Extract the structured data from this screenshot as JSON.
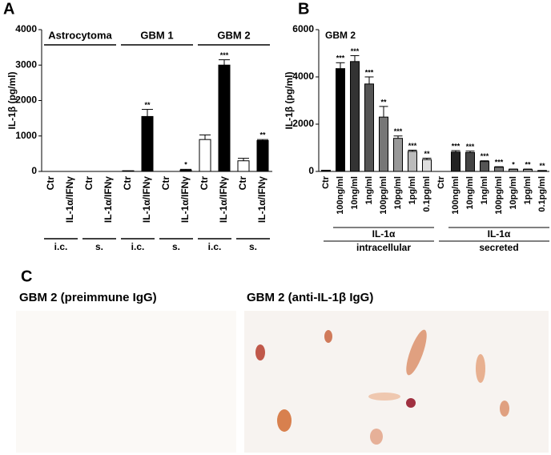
{
  "panel_labels": [
    "A",
    "B",
    "C"
  ],
  "chart_data": [
    {
      "type": "bar",
      "ylabel": "IL-1β (pg/ml)",
      "categories": [
        "Ctr",
        "IL-1α/IFNγ",
        "Ctr",
        "IL-1α/IFNγ",
        "Ctr",
        "IL-1α/IFNγ",
        "Ctr",
        "IL-1α/IFNγ",
        "Ctr",
        "IL-1α/IFNγ",
        "Ctr",
        "IL-1α/IFNγ"
      ],
      "values": [
        0,
        0,
        0,
        0,
        20,
        1550,
        0,
        40,
        900,
        3000,
        300,
        870
      ],
      "errors": [
        null,
        null,
        null,
        null,
        null,
        200,
        null,
        20,
        130,
        150,
        70,
        30
      ],
      "significance": [
        null,
        null,
        null,
        null,
        null,
        "**",
        null,
        "*",
        null,
        "***",
        null,
        "**"
      ],
      "colors": [
        "#ffffff",
        "#000000",
        "#ffffff",
        "#000000",
        "#ffffff",
        "#000000",
        "#ffffff",
        "#000000",
        "#ffffff",
        "#000000",
        "#ffffff",
        "#000000"
      ],
      "groups": [
        "Astrocytoma",
        "GBM 1",
        "GBM 2"
      ],
      "subgroups": [
        "i.c.",
        "s.",
        "i.c.",
        "s.",
        "i.c.",
        "s."
      ],
      "ylim": [
        0,
        4000
      ],
      "yticks": [
        0,
        1000,
        2000,
        3000,
        4000
      ]
    },
    {
      "type": "bar",
      "title": "GBM 2",
      "ylabel": "IL-1β (pg/ml)",
      "categories": [
        "Ctr",
        "100ng/ml",
        "10ng/ml",
        "1ng/ml",
        "100pg/ml",
        "10pg/ml",
        "1pg/ml",
        "0.1pg/ml",
        "Ctr",
        "100ng/ml",
        "10ng/ml",
        "1ng/ml",
        "100pg/ml",
        "10pg/ml",
        "1pg/ml",
        "0.1pg/ml"
      ],
      "values": [
        50,
        4350,
        4650,
        3700,
        2300,
        1400,
        850,
        500,
        0,
        820,
        800,
        420,
        180,
        90,
        80,
        30
      ],
      "errors": [
        null,
        250,
        250,
        300,
        450,
        100,
        50,
        60,
        null,
        60,
        60,
        30,
        20,
        10,
        20,
        10
      ],
      "significance": [
        null,
        "***",
        "***",
        "***",
        "**",
        "***",
        "***",
        "**",
        null,
        "***",
        "***",
        "***",
        "***",
        "*",
        "**",
        "**"
      ],
      "colors": [
        "#000000",
        "#000000",
        "#333333",
        "#555555",
        "#777777",
        "#999999",
        "#bbbbbb",
        "#dddddd",
        "#000000",
        "#222222",
        "#444444",
        "#555555",
        "#777777",
        "#999999",
        "#bbbbbb",
        "#dddddd"
      ],
      "groups": [
        {
          "label": "IL-1α",
          "sublabel": "intracellular"
        },
        {
          "label": "IL-1α",
          "sublabel": "secreted"
        }
      ],
      "ylim": [
        0,
        6000
      ],
      "yticks": [
        0,
        2000,
        4000,
        6000
      ]
    }
  ],
  "images": [
    {
      "caption": "GBM 2 (preimmune IgG)"
    },
    {
      "caption": "GBM 2 (anti-IL-1β IgG)"
    }
  ]
}
